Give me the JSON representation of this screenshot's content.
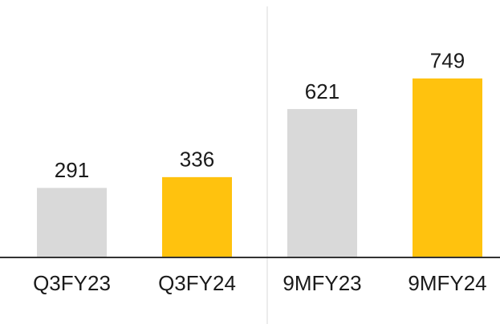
{
  "chart_data": {
    "type": "bar",
    "categories": [
      "Q3FY23",
      "Q3FY24",
      "9MFY23",
      "9MFY24"
    ],
    "values": [
      291,
      336,
      621,
      749
    ],
    "colors": [
      "#d9d9d9",
      "#ffc20e",
      "#d9d9d9",
      "#ffc20e"
    ],
    "ylim": [
      0,
      1000
    ]
  }
}
